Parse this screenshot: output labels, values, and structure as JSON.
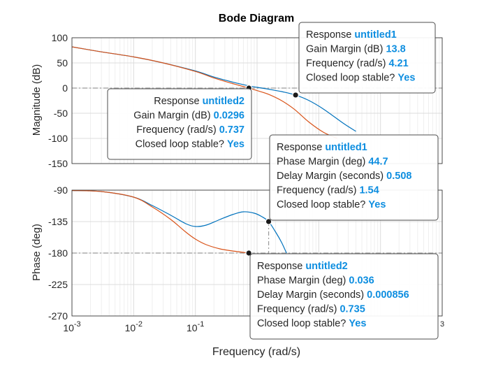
{
  "chart_data": {
    "type": "line",
    "title": "Bode Diagram",
    "xlabel": "Frequency  (rad/s)",
    "xscale": "log",
    "xlim": [
      0.001,
      1000
    ],
    "x_ticks": [
      {
        "base": "10",
        "exp": "-3"
      },
      {
        "base": "10",
        "exp": "-2"
      },
      {
        "base": "10",
        "exp": "-1"
      },
      {
        "base": "",
        "exp": ""
      },
      {
        "base": "",
        "exp": ""
      },
      {
        "base": "",
        "exp": ""
      },
      {
        "base": "",
        "exp": "3"
      }
    ],
    "grid": true,
    "colors": {
      "untitled1": "#0072bd",
      "untitled2": "#d95319",
      "guide": "#9a9a9a"
    },
    "panels": [
      {
        "name": "magnitude",
        "ylabel": "Magnitude (dB)",
        "ylim": [
          -150,
          100
        ],
        "yticks": [
          "100",
          "50",
          "0",
          "-50",
          "-100",
          "-150"
        ],
        "guide_y": 0,
        "series": [
          {
            "key": "untitled1",
            "x": [
              0.001,
              0.003,
              0.01,
              0.03,
              0.1,
              0.2,
              0.4,
              0.7,
              1,
              1.5,
              2.5,
              4.21,
              7,
              12,
              25,
              40
            ],
            "y": [
              82,
              72,
              62,
              50,
              34,
              22,
              12,
              5,
              1.5,
              -2,
              -7,
              -13.8,
              -25,
              -42,
              -70,
              -86
            ]
          },
          {
            "key": "untitled2",
            "x": [
              0.001,
              0.003,
              0.01,
              0.03,
              0.1,
              0.2,
              0.4,
              0.737,
              1,
              1.5,
              2.5,
              4,
              7,
              12,
              20
            ],
            "y": [
              82,
              72,
              62,
              50,
              33,
              20,
              9,
              0,
              -5,
              -12,
              -25,
              -42,
              -68,
              -88,
              -100
            ]
          }
        ],
        "markers": [
          {
            "key": "untitled1",
            "x": 4.21,
            "y": -13.8
          },
          {
            "key": "untitled2",
            "x": 0.737,
            "y": 0
          }
        ]
      },
      {
        "name": "phase",
        "ylabel": "Phase (deg)",
        "ylim": [
          -270,
          -90
        ],
        "yticks": [
          "-90",
          "-135",
          "-180",
          "-225",
          "-270"
        ],
        "guide_y": -180,
        "series": [
          {
            "key": "untitled1",
            "x": [
              0.001,
              0.003,
              0.01,
              0.02,
              0.04,
              0.07,
              0.1,
              0.15,
              0.25,
              0.4,
              0.6,
              0.9,
              1.2,
              1.54,
              2,
              2.5,
              3
            ],
            "y": [
              -90.5,
              -92,
              -100,
              -112,
              -126,
              -138,
              -142,
              -140,
              -132,
              -125,
              -121,
              -123,
              -128,
              -135,
              -150,
              -165,
              -180
            ]
          },
          {
            "key": "untitled2",
            "x": [
              0.001,
              0.003,
              0.01,
              0.02,
              0.04,
              0.07,
              0.1,
              0.15,
              0.25,
              0.4,
              0.735
            ],
            "y": [
              -90.5,
              -92,
              -100,
              -114,
              -132,
              -150,
              -160,
              -168,
              -174,
              -177,
              -180
            ]
          }
        ],
        "markers": [
          {
            "key": "untitled1",
            "x": 1.54,
            "y": -135
          },
          {
            "key": "untitled2",
            "x": 0.735,
            "y": -180
          }
        ]
      }
    ],
    "annotations": [
      {
        "name": "gain-margin-untitled1",
        "lines": [
          {
            "label": "Response",
            "value": "untitled1"
          },
          {
            "label": "Gain Margin (dB)",
            "value": "13.8"
          },
          {
            "label": "Frequency (rad/s)",
            "value": "4.21"
          },
          {
            "label": "Closed loop stable?",
            "value": "Yes"
          }
        ]
      },
      {
        "name": "gain-margin-untitled2",
        "lines": [
          {
            "label": "Response",
            "value": "untitled2"
          },
          {
            "label": "Gain Margin (dB)",
            "value": "0.0296"
          },
          {
            "label": "Frequency (rad/s)",
            "value": "0.737"
          },
          {
            "label": "Closed loop stable?",
            "value": "Yes"
          }
        ]
      },
      {
        "name": "phase-margin-untitled1",
        "lines": [
          {
            "label": "Response",
            "value": "untitled1"
          },
          {
            "label": "Phase Margin (deg)",
            "value": "44.7"
          },
          {
            "label": "Delay Margin (seconds)",
            "value": "0.508"
          },
          {
            "label": "Frequency (rad/s)",
            "value": "1.54"
          },
          {
            "label": "Closed loop stable?",
            "value": "Yes"
          }
        ]
      },
      {
        "name": "phase-margin-untitled2",
        "lines": [
          {
            "label": "Response",
            "value": "untitled2"
          },
          {
            "label": "Phase Margin (deg)",
            "value": "0.036"
          },
          {
            "label": "Delay Margin (seconds)",
            "value": "0.000856"
          },
          {
            "label": "Frequency (rad/s)",
            "value": "0.735"
          },
          {
            "label": "Closed loop stable?",
            "value": "Yes"
          }
        ]
      }
    ]
  }
}
